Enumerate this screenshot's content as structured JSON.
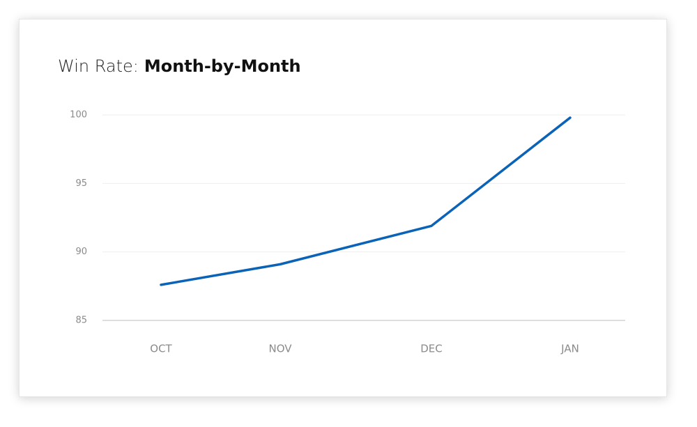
{
  "chart_data": {
    "type": "line",
    "title": "Win Rate:",
    "subtitle": "Month-by-Month",
    "categories": [
      "OCT",
      "NOV",
      "DEC",
      "JAN"
    ],
    "series": [
      {
        "name": "Win Rate",
        "color": "#0b63b8",
        "values": [
          87.6,
          89.1,
          91.9,
          99.8
        ]
      }
    ],
    "ylim": [
      85,
      100
    ],
    "yticks": [
      85,
      90,
      95,
      100
    ],
    "grid": true,
    "legend": false
  }
}
